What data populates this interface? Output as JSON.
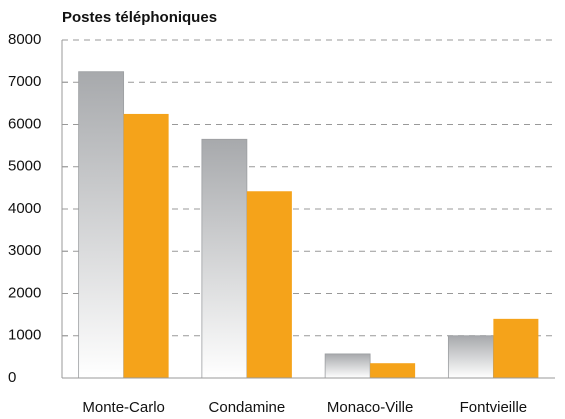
{
  "chart_data": {
    "type": "bar",
    "title": "Postes téléphoniques",
    "categories": [
      "Monte-Carlo",
      "Condamine",
      "Monaco-Ville",
      "Fontvieille"
    ],
    "series": [
      {
        "color": "#a7a9ac",
        "values": [
          7250,
          5650,
          570,
          1000
        ]
      },
      {
        "color": "#f5a31a",
        "values": [
          6250,
          4420,
          350,
          1400
        ]
      }
    ],
    "ylim": [
      0,
      8000
    ],
    "yticks": [
      0,
      1000,
      2000,
      3000,
      4000,
      5000,
      6000,
      7000,
      8000
    ],
    "grid": true
  }
}
